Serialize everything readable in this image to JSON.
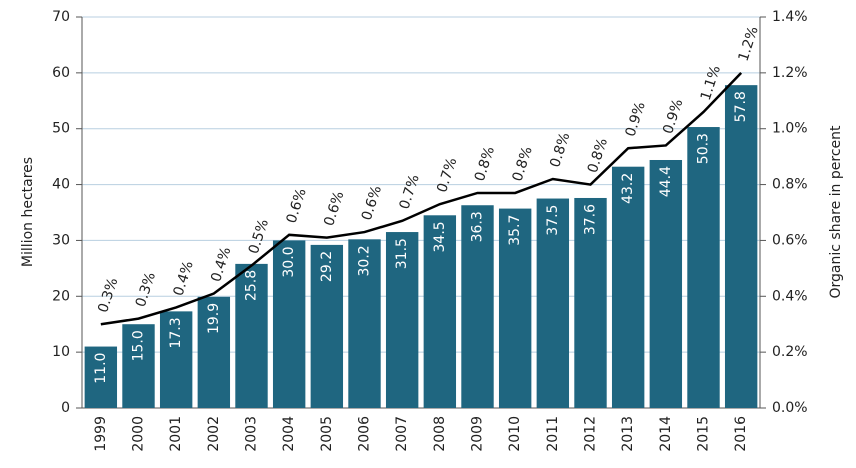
{
  "chart_data": {
    "type": "bar",
    "categories": [
      "1999",
      "2000",
      "2001",
      "2002",
      "2003",
      "2004",
      "2005",
      "2006",
      "2007",
      "2008",
      "2009",
      "2010",
      "2011",
      "2012",
      "2013",
      "2014",
      "2015",
      "2016"
    ],
    "series": [
      {
        "name": "Million hectares",
        "type": "bar",
        "color": "#1f6680",
        "values": [
          11.0,
          15.0,
          17.3,
          19.9,
          25.8,
          30.0,
          29.2,
          30.2,
          31.5,
          34.5,
          36.3,
          35.7,
          37.5,
          37.6,
          43.2,
          44.4,
          50.3,
          57.8
        ],
        "value_labels": [
          "11.0",
          "15.0",
          "17.3",
          "19.9",
          "25.8",
          "30.0",
          "29.2",
          "30.2",
          "31.5",
          "34.5",
          "36.3",
          "35.7",
          "37.5",
          "37.6",
          "43.2",
          "44.4",
          "50.3",
          "57.8"
        ]
      },
      {
        "name": "Organic share in percent",
        "type": "line",
        "axis": "y2",
        "color": "#000000",
        "values": [
          0.3,
          0.32,
          0.36,
          0.41,
          0.51,
          0.62,
          0.61,
          0.63,
          0.67,
          0.73,
          0.77,
          0.77,
          0.82,
          0.8,
          0.93,
          0.94,
          1.06,
          1.2
        ],
        "value_labels": [
          "0.3%",
          "0.3%",
          "0.4%",
          "0.4%",
          "0.5%",
          "0.6%",
          "0.6%",
          "0.6%",
          "0.7%",
          "0.7%",
          "0.8%",
          "0.8%",
          "0.8%",
          "0.8%",
          "0.9%",
          "0.9%",
          "1.1%",
          "1.2%"
        ]
      }
    ],
    "y_label": "Million hectares",
    "y2_label": "Organic share in percent",
    "ylim": [
      0,
      70
    ],
    "yticks": [
      0,
      10,
      20,
      30,
      40,
      50,
      60,
      70
    ],
    "y2lim": [
      0,
      1.4
    ],
    "y2ticks": [
      {
        "value": 0,
        "label": "0.0%"
      },
      {
        "value": 0.2,
        "label": "0.2%"
      },
      {
        "value": 0.4,
        "label": "0.4%"
      },
      {
        "value": 0.6,
        "label": "0.6%"
      },
      {
        "value": 0.8,
        "label": "0.8%"
      },
      {
        "value": 1.0,
        "label": "1.0%"
      },
      {
        "value": 1.2,
        "label": "1.2%"
      },
      {
        "value": 1.4,
        "label": "1.4%"
      }
    ],
    "grid": true
  }
}
